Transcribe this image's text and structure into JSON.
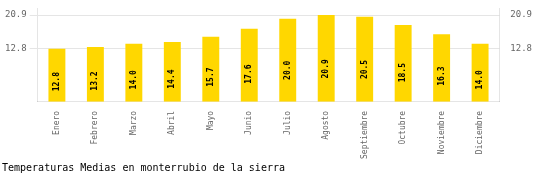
{
  "chart_data": {
    "type": "bar",
    "title": "Temperaturas Medias en monterrubio de la sierra",
    "categories": [
      "Enero",
      "Febrero",
      "Marzo",
      "Abril",
      "Mayo",
      "Junio",
      "Julio",
      "Agosto",
      "Septiembre",
      "Octubre",
      "Noviembre",
      "Diciembre"
    ],
    "values": [
      12.8,
      13.2,
      14.0,
      14.4,
      15.7,
      17.6,
      20.0,
      20.9,
      20.5,
      18.5,
      16.3,
      14.0
    ],
    "value_labels": [
      "12.8",
      "13.2",
      "14.0",
      "14.4",
      "15.7",
      "17.6",
      "20.0",
      "20.9",
      "20.5",
      "18.5",
      "16.3",
      "14.0"
    ],
    "data_labels": true,
    "color": "#FFD700",
    "ylim": [
      0,
      22.5
    ],
    "yticks": [
      12.8,
      20.9
    ],
    "grid": true
  }
}
